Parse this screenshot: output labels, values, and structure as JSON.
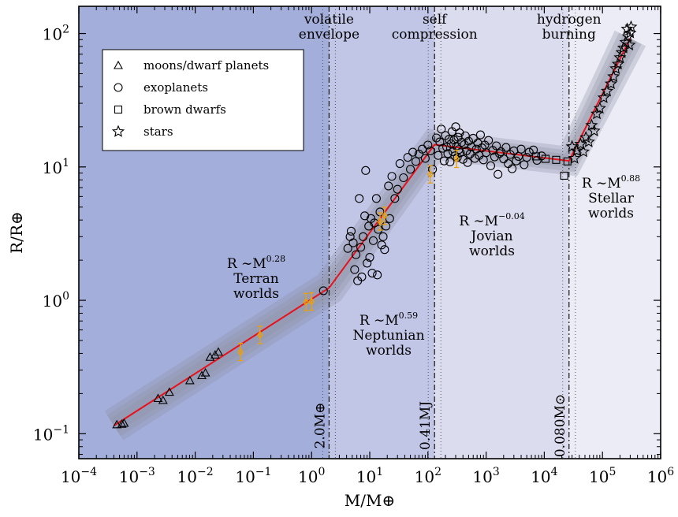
{
  "chart_data": {
    "type": "scatter",
    "xscale": "log",
    "yscale": "log",
    "xlim": [
      0.0001,
      1000000
    ],
    "ylim": [
      0.065,
      160
    ],
    "xlabel": "M/M⊕",
    "ylabel": "R/R⊕",
    "x_ticks": [
      {
        "value": 0.0001,
        "base": "10",
        "exp": "−4"
      },
      {
        "value": 0.001,
        "base": "10",
        "exp": "−3"
      },
      {
        "value": 0.01,
        "base": "10",
        "exp": "−2"
      },
      {
        "value": 0.1,
        "base": "10",
        "exp": "−1"
      },
      {
        "value": 1,
        "base": "10",
        "exp": "0"
      },
      {
        "value": 10,
        "base": "10",
        "exp": "1"
      },
      {
        "value": 100,
        "base": "10",
        "exp": "2"
      },
      {
        "value": 1000,
        "base": "10",
        "exp": "3"
      },
      {
        "value": 10000,
        "base": "10",
        "exp": "4"
      },
      {
        "value": 100000,
        "base": "10",
        "exp": "5"
      },
      {
        "value": 1000000,
        "base": "10",
        "exp": "6"
      }
    ],
    "y_ticks": [
      {
        "value": 0.1,
        "base": "10",
        "exp": "−1"
      },
      {
        "value": 1,
        "base": "10",
        "exp": "0"
      },
      {
        "value": 10,
        "base": "10",
        "exp": "1"
      },
      {
        "value": 100,
        "base": "10",
        "exp": "2"
      }
    ],
    "regions": [
      {
        "x0": 0.0001,
        "x1": 2.0,
        "color": "#a3aedb"
      },
      {
        "x0": 2.0,
        "x1": 130,
        "color": "#c1c6e6"
      },
      {
        "x0": 130,
        "x1": 26600,
        "color": "#dcdcef"
      },
      {
        "x0": 26600,
        "x1": 1000000,
        "color": "#ececf6"
      }
    ],
    "transitions": [
      {
        "x": 2.0,
        "label": "2.0M⊕",
        "top_label": [
          "volatile",
          "envelope"
        ]
      },
      {
        "x": 130,
        "label": "0.41MJ",
        "top_label": [
          "self",
          "compression"
        ]
      },
      {
        "x": 26600,
        "label": "0.080M⊙",
        "top_label": [
          "hydrogen",
          "burning"
        ]
      }
    ],
    "fit_line": [
      [
        0.0004,
        0.115
      ],
      [
        2.0,
        1.24
      ],
      [
        130,
        14.7
      ],
      [
        26600,
        11.1
      ],
      [
        300000,
        92
      ]
    ],
    "region_labels": [
      {
        "relation": "R ∼M",
        "exponent": "0.28",
        "name": "Terran",
        "name2": "worlds"
      },
      {
        "relation": "R ∼M",
        "exponent": "0.59",
        "name": "Neptunian",
        "name2": "worlds"
      },
      {
        "relation": "R ∼M",
        "exponent": "−0.04",
        "name": "Jovian",
        "name2": "worlds"
      },
      {
        "relation": "R ∼M",
        "exponent": "0.88",
        "name": "Stellar",
        "name2": "worlds"
      }
    ],
    "legend": {
      "placement": "top-left",
      "entries": [
        {
          "marker": "triangle",
          "label": "moons/dwarf planets"
        },
        {
          "marker": "circle",
          "label": "exoplanets"
        },
        {
          "marker": "square",
          "label": "brown dwarfs"
        },
        {
          "marker": "star",
          "label": "stars"
        }
      ]
    },
    "series": [
      {
        "name": "moons/dwarf planets",
        "marker": "triangle",
        "points": [
          [
            0.00045,
            0.117
          ],
          [
            0.00055,
            0.118
          ],
          [
            0.0006,
            0.12
          ],
          [
            0.0023,
            0.184
          ],
          [
            0.0028,
            0.178
          ],
          [
            0.0036,
            0.205
          ],
          [
            0.0081,
            0.25
          ],
          [
            0.013,
            0.273
          ],
          [
            0.015,
            0.286
          ],
          [
            0.018,
            0.375
          ],
          [
            0.022,
            0.39
          ],
          [
            0.025,
            0.41
          ]
        ]
      },
      {
        "name": "exoplanets",
        "marker": "circle",
        "points": [
          [
            1.6,
            1.18
          ],
          [
            4.2,
            2.45
          ],
          [
            4.6,
            3.0
          ],
          [
            4.8,
            3.3
          ],
          [
            5.2,
            2.7
          ],
          [
            5.5,
            1.7
          ],
          [
            5.8,
            2.2
          ],
          [
            6.2,
            1.4
          ],
          [
            6.6,
            5.8
          ],
          [
            7.0,
            2.5
          ],
          [
            7.3,
            1.5
          ],
          [
            7.7,
            3.0
          ],
          [
            8.2,
            4.3
          ],
          [
            8.5,
            9.4
          ],
          [
            9.0,
            1.9
          ],
          [
            9.6,
            3.6
          ],
          [
            10,
            2.1
          ],
          [
            10.5,
            4.1
          ],
          [
            11,
            1.6
          ],
          [
            11.5,
            2.8
          ],
          [
            12,
            3.8
          ],
          [
            13,
            5.8
          ],
          [
            13.5,
            1.55
          ],
          [
            14,
            3.4
          ],
          [
            15,
            4.6
          ],
          [
            16,
            2.6
          ],
          [
            17,
            3.0
          ],
          [
            18,
            2.4
          ],
          [
            19,
            3.6
          ],
          [
            21,
            7.2
          ],
          [
            22,
            4.1
          ],
          [
            24,
            8.5
          ],
          [
            27,
            5.8
          ],
          [
            30,
            6.8
          ],
          [
            33,
            10.6
          ],
          [
            38,
            8.3
          ],
          [
            45,
            11.8
          ],
          [
            50,
            9.6
          ],
          [
            55,
            12.9
          ],
          [
            62,
            11.0
          ],
          [
            70,
            12.5
          ],
          [
            80,
            13.6
          ],
          [
            90,
            11.6
          ],
          [
            100,
            14.6
          ],
          [
            110,
            13.2
          ],
          [
            120,
            9.6
          ],
          [
            140,
            16.5
          ],
          [
            150,
            12.2
          ],
          [
            160,
            15.4
          ],
          [
            170,
            19.2
          ],
          [
            180,
            13.8
          ],
          [
            190,
            11.1
          ],
          [
            200,
            17.2
          ],
          [
            210,
            14.1
          ],
          [
            220,
            12.6
          ],
          [
            230,
            16.1
          ],
          [
            240,
            10.9
          ],
          [
            250,
            14.9
          ],
          [
            260,
            18.4
          ],
          [
            270,
            13.0
          ],
          [
            280,
            15.9
          ],
          [
            290,
            12.1
          ],
          [
            300,
            20.0
          ],
          [
            310,
            14.3
          ],
          [
            320,
            11.8
          ],
          [
            330,
            16.7
          ],
          [
            340,
            13.5
          ],
          [
            350,
            18.0
          ],
          [
            360,
            12.8
          ],
          [
            380,
            15.3
          ],
          [
            400,
            11.4
          ],
          [
            420,
            14.7
          ],
          [
            440,
            17.1
          ],
          [
            460,
            13.2
          ],
          [
            480,
            10.8
          ],
          [
            500,
            15.6
          ],
          [
            530,
            12.5
          ],
          [
            560,
            14.1
          ],
          [
            600,
            16.4
          ],
          [
            640,
            11.6
          ],
          [
            680,
            13.6
          ],
          [
            720,
            15.1
          ],
          [
            760,
            12.2
          ],
          [
            800,
            17.4
          ],
          [
            850,
            13.9
          ],
          [
            900,
            11.3
          ],
          [
            950,
            14.6
          ],
          [
            1000,
            12.8
          ],
          [
            1100,
            15.8
          ],
          [
            1200,
            10.2
          ],
          [
            1300,
            13.3
          ],
          [
            1400,
            11.9
          ],
          [
            1500,
            14.4
          ],
          [
            1600,
            8.8
          ],
          [
            1700,
            12.6
          ],
          [
            1800,
            13.0
          ],
          [
            2000,
            11.5
          ],
          [
            2200,
            14.0
          ],
          [
            2400,
            10.6
          ],
          [
            2600,
            12.4
          ],
          [
            2800,
            9.7
          ],
          [
            3000,
            13.2
          ],
          [
            3300,
            11.1
          ],
          [
            3600,
            12.0
          ],
          [
            4000,
            13.6
          ],
          [
            4500,
            10.4
          ],
          [
            5000,
            11.8
          ],
          [
            5500,
            12.9
          ],
          [
            6500,
            13.4
          ],
          [
            7500,
            11.2
          ],
          [
            9000,
            12.1
          ]
        ]
      },
      {
        "name": "brown dwarfs",
        "marker": "square",
        "points": [
          [
            7200,
            12.0
          ],
          [
            10500,
            11.5
          ],
          [
            16000,
            11.3
          ],
          [
            22000,
            8.6
          ],
          [
            25000,
            11.0
          ]
        ]
      },
      {
        "name": "stars",
        "marker": "star",
        "points": [
          [
            30000,
            14.2
          ],
          [
            33000,
            11.6
          ],
          [
            36000,
            13.2
          ],
          [
            42000,
            14.8
          ],
          [
            47000,
            13.0
          ],
          [
            52000,
            16.6
          ],
          [
            58000,
            15.4
          ],
          [
            65000,
            20.5
          ],
          [
            72000,
            18.6
          ],
          [
            80000,
            25.0
          ],
          [
            90000,
            27.5
          ],
          [
            105000,
            33.0
          ],
          [
            120000,
            37.0
          ],
          [
            140000,
            42.0
          ],
          [
            155000,
            47.5
          ],
          [
            170000,
            54.5
          ],
          [
            185000,
            59.0
          ],
          [
            200000,
            66.0
          ],
          [
            215000,
            72.0
          ],
          [
            230000,
            78.0
          ],
          [
            250000,
            86.0
          ],
          [
            265000,
            108.0
          ],
          [
            275000,
            95.0
          ],
          [
            290000,
            82.0
          ],
          [
            300000,
            101.0
          ],
          [
            310000,
            112.0
          ]
        ]
      },
      {
        "name": "",
        "marker": "diamond-errorbar",
        "color": "#f0a000",
        "points": [
          [
            0.06,
            0.41
          ],
          [
            0.13,
            0.55
          ],
          [
            0.8,
            0.97
          ],
          [
            1.0,
            0.98
          ],
          [
            15,
            3.9
          ],
          [
            18,
            4.3
          ],
          [
            110,
            8.8
          ],
          [
            310,
            11.5
          ]
        ]
      }
    ]
  }
}
